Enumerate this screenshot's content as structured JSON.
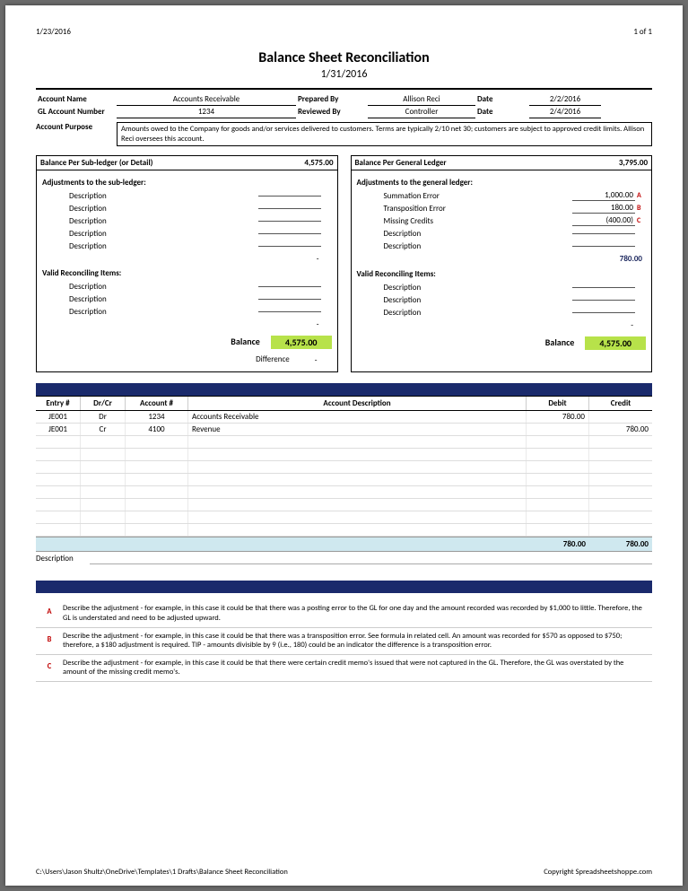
{
  "meta": {
    "print_date": "1/23/2016",
    "page": "1 of 1"
  },
  "header": {
    "title": "Balance Sheet Reconciliation",
    "as_of": "1/31/2016"
  },
  "info": {
    "account_name_lbl": "Account Name",
    "account_name": "Accounts Receivable",
    "prepared_by_lbl": "Prepared By",
    "prepared_by": "Allison Reci",
    "date1_lbl": "Date",
    "date1": "2/2/2016",
    "gl_num_lbl": "GL Account Number",
    "gl_num": "1234",
    "reviewed_by_lbl": "Reviewed By",
    "reviewed_by": "Controller",
    "date2_lbl": "Date",
    "date2": "2/4/2016",
    "purpose_lbl": "Account Purpose",
    "purpose": "Amounts owed to the Company for goods and/or services delivered to customers.  Terms are typically 2/10 net 30; customers are subject to approved credit limits.  Allison Reci oversees this account."
  },
  "left": {
    "hdr": "Balance Per Sub-ledger (or Detail)",
    "hdr_amt": "4,575.00",
    "adj_title": "Adjustments to the sub-ledger:",
    "rows": [
      {
        "desc": "Description"
      },
      {
        "desc": "Description"
      },
      {
        "desc": "Description"
      },
      {
        "desc": "Description"
      },
      {
        "desc": "Description"
      }
    ],
    "dash": "-",
    "valid_title": "Valid Reconciling Items:",
    "vrows": [
      {
        "desc": "Description"
      },
      {
        "desc": "Description"
      },
      {
        "desc": "Description"
      }
    ],
    "balance_lbl": "Balance",
    "balance": "4,575.00",
    "diff_lbl": "Difference",
    "diff": "-"
  },
  "right": {
    "hdr": "Balance Per General Ledger",
    "hdr_amt": "3,795.00",
    "adj_title": "Adjustments to the general ledger:",
    "rows": [
      {
        "desc": "Summation Error",
        "amt": "1,000.00",
        "mk": "A"
      },
      {
        "desc": "Transposition Error",
        "amt": "180.00",
        "mk": "B"
      },
      {
        "desc": "Missing Credits",
        "amt": "(400.00)",
        "mk": "C"
      },
      {
        "desc": "Description"
      },
      {
        "desc": "Description"
      }
    ],
    "running": "780.00",
    "valid_title": "Valid Reconciling Items:",
    "vrows": [
      {
        "desc": "Description"
      },
      {
        "desc": "Description"
      },
      {
        "desc": "Description"
      }
    ],
    "balance_lbl": "Balance",
    "balance": "4,575.00"
  },
  "je": {
    "head": {
      "entry": "Entry #",
      "drcr": "Dr/Cr",
      "acct": "Account #",
      "desc": "Account Description",
      "debit": "Debit",
      "credit": "Credit"
    },
    "rows": [
      {
        "entry": "JE001",
        "drcr": "Dr",
        "acct": "1234",
        "desc": "Accounts Receivable",
        "debit": "780.00",
        "credit": ""
      },
      {
        "entry": "JE001",
        "drcr": "Cr",
        "acct": "4100",
        "desc": "Revenue",
        "debit": "",
        "credit": "780.00"
      }
    ],
    "blank_rows": 8,
    "tot_debit": "780.00",
    "tot_credit": "780.00",
    "desc_lbl": "Description"
  },
  "notes": {
    "items": [
      {
        "mk": "A",
        "tx": "Describe the adjustment - for example, in this case it could be that there was a posting error to the GL for one day and the amount recorded was recorded by $1,000 to little.  Therefore, the GL is understated and need to be adjusted upward."
      },
      {
        "mk": "B",
        "tx": "Describe the adjustment - for example, in this case it could be that there was a transposition error.  See formula in related cell.  An amount was recorded for $570 as opposed to $750; therefore, a $180 adjustment is required.  TIP - amounts divisible by 9 (i.e., 180) could be an indicator the difference is a transposition error."
      },
      {
        "mk": "C",
        "tx": "Describe the adjustment - for example, in this case it could be that there were certain credit memo's issued that were not captured in the GL.  Therefore, the GL was overstated by the amount of the missing credit memo's."
      }
    ]
  },
  "footer": {
    "path": "C:\\Users\\Jason Shultz\\OneDrive\\Templates\\1 Drafts\\Balance Sheet Reconciliation",
    "copy": "Copyright Spreadsheetshoppe.com"
  },
  "colors": {
    "accent": "#b7e24a",
    "band": "#1a2a6c",
    "totals_bg": "#cfe8ef",
    "mark": "#c00000"
  }
}
